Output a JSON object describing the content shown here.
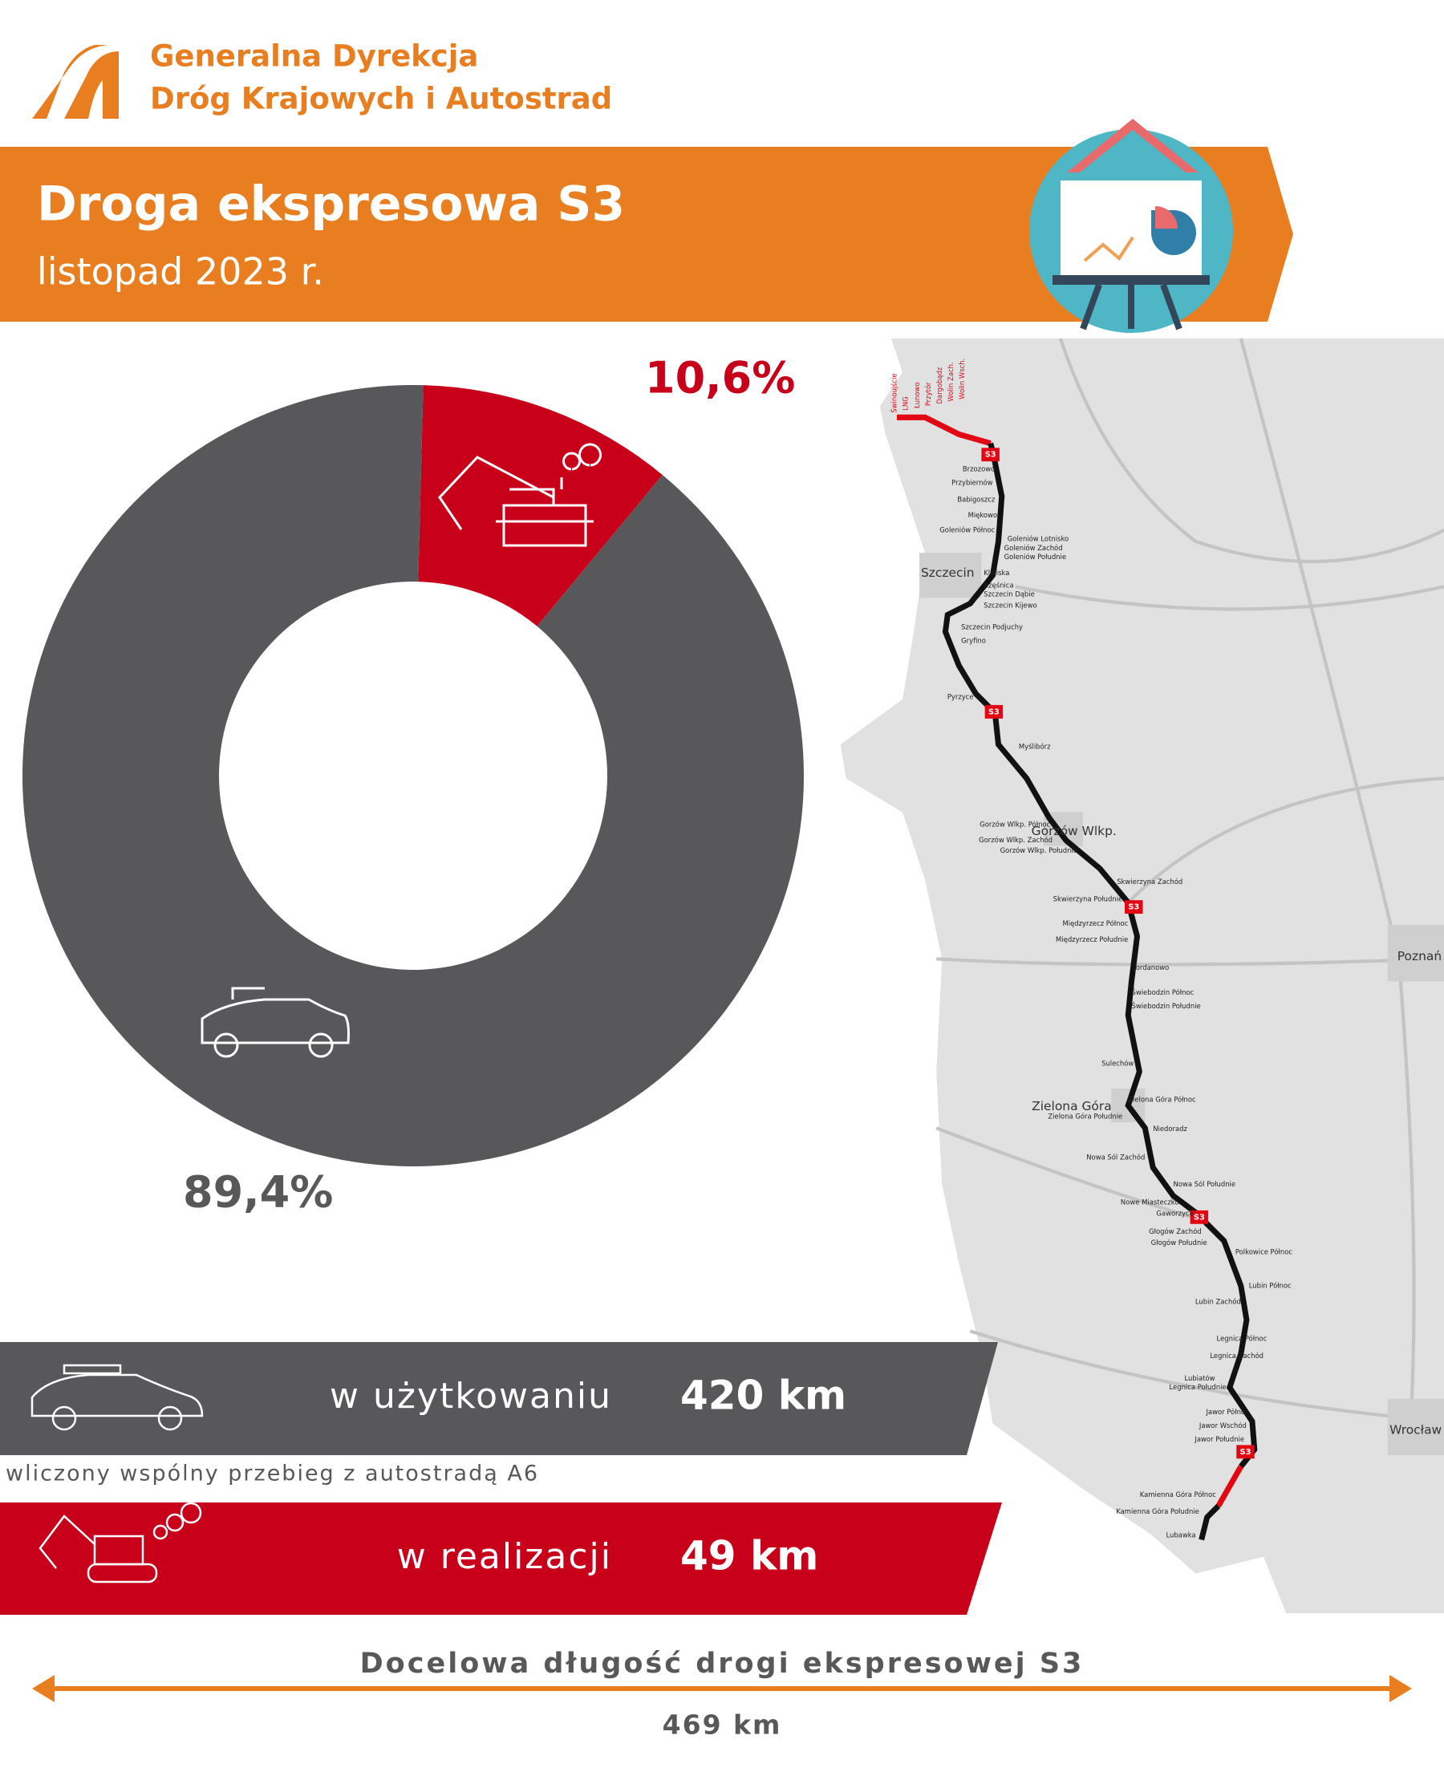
{
  "header": {
    "org_line1": "Generalna Dyrekcja",
    "org_line2": "Dróg Krajowych i Autostrad",
    "title": "Droga ekspresowa S3",
    "subtitle": "listopad 2023 r."
  },
  "chart_data": {
    "type": "donut",
    "values": [
      10.6,
      89.4
    ],
    "value_labels": [
      "10,6%",
      "89,4%"
    ],
    "colors": [
      "#c8001a",
      "#58585a"
    ]
  },
  "summary": {
    "rows": [
      {
        "label": "w użytkowaniu",
        "value": "420 km"
      },
      {
        "label": "w realizacji",
        "value": "49 km"
      }
    ],
    "note": "wliczony wspólny przebieg z autostradą A6",
    "target_title": "Docelowa długość drogi ekspresowej S3",
    "target_value": "469 km"
  },
  "map": {
    "shield_label": "S3",
    "cities": [
      "Szczecin",
      "Gorzów Wlkp.",
      "Zielona Góra",
      "Poznań",
      "Wrocław"
    ],
    "nodes_top": [
      "Świnoujście",
      "LNG",
      "Łunowo",
      "Przytór",
      "Dargobądz",
      "Wolin Zach.",
      "Wolin Wsch."
    ],
    "nodes": [
      "Brzozowo",
      "Przybiernów",
      "Babigoszcz",
      "Miękowo",
      "Goleniów Północ",
      "Goleniów Lotnisko",
      "Goleniów Zachód",
      "Goleniów Południe",
      "Kliniska",
      "Rzęśnica",
      "Szczecin Dąbie",
      "Szczecin Kijewo",
      "Szczecin Podjuchy",
      "Gryfino",
      "Pyrzyce",
      "Myślibórz",
      "Gorzów Wlkp. Północ",
      "Gorzów Wlkp. Zachód",
      "Gorzów Wlkp. Południe",
      "Skwierzyna Zachód",
      "Skwierzyna Południe",
      "Międzyrzecz Północ",
      "Międzyrzecz Południe",
      "Jordanowo",
      "Świebodzin Północ",
      "Świebodzin Południe",
      "Sulechów",
      "Zielona Góra Północ",
      "Zielona Góra Południe",
      "Niedoradz",
      "Nowa Sól Zachód",
      "Nowa Sól Południe",
      "Nowe Miasteczko",
      "Gaworzyce",
      "Głogów Zachód",
      "Głogów Południe",
      "Polkowice Północ",
      "Lubin Północ",
      "Lubin Zachód",
      "Legnica Północ",
      "Legnica Zachód",
      "Lubiatów",
      "Legnica Południe",
      "Jawor Północ",
      "Jawor Wschód",
      "Jawor Południe",
      "Kamienna Góra Północ",
      "Kamienna Góra Południe",
      "Lubawka"
    ]
  }
}
